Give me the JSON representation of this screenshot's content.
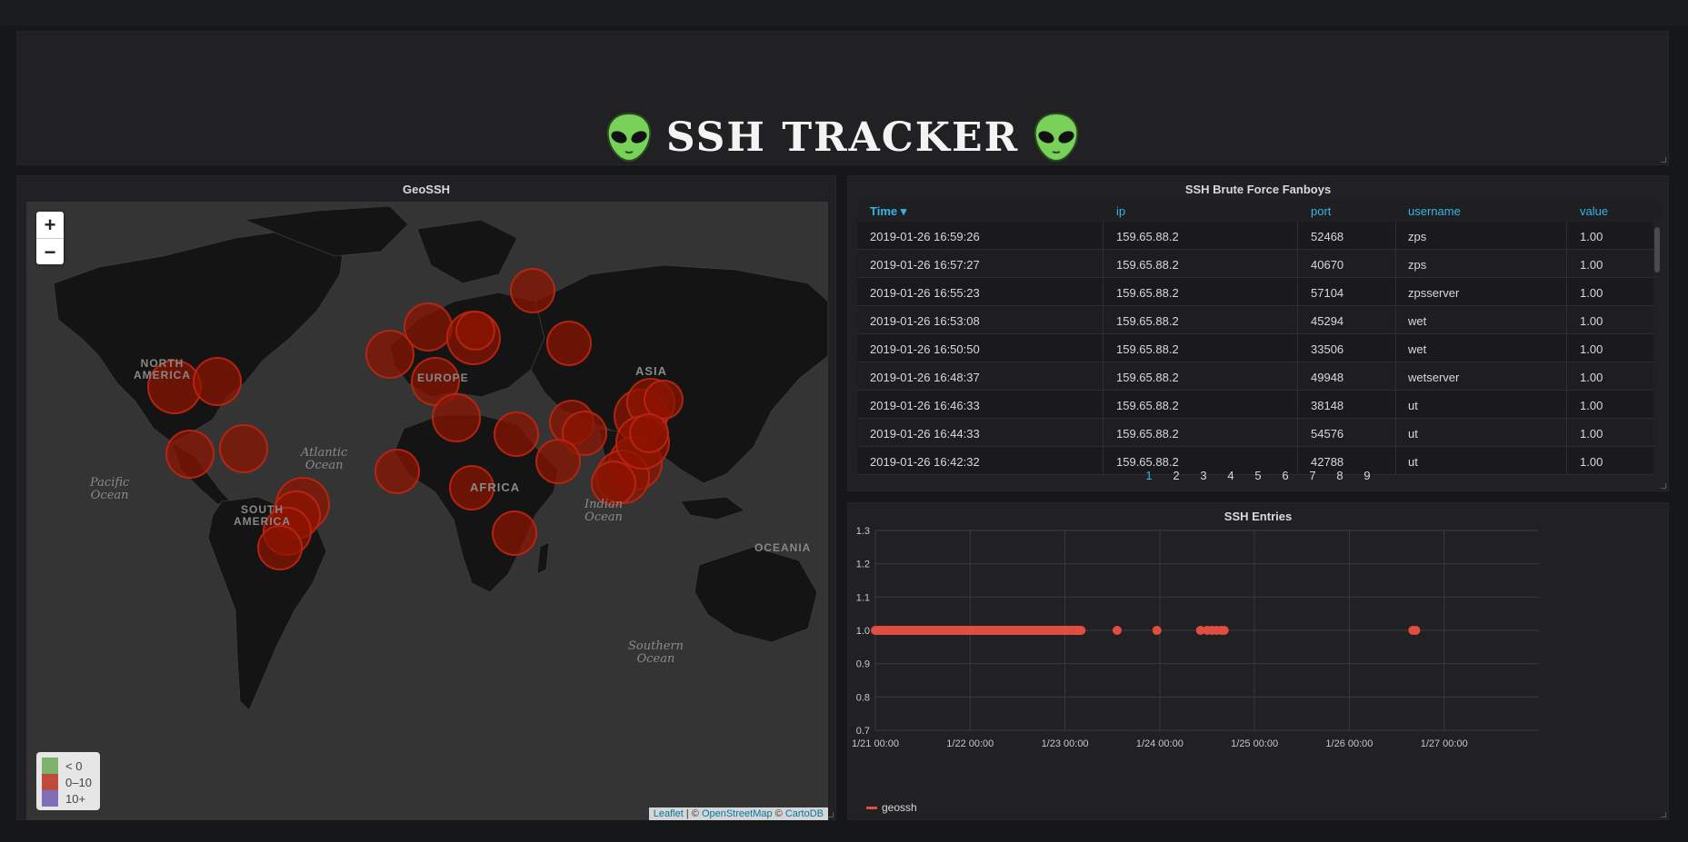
{
  "header": {
    "title": "SSH TRACKER",
    "icon_left": "alien-emoji-icon",
    "icon_right": "alien-emoji-icon"
  },
  "map_panel": {
    "title": "GeoSSH",
    "zoom_in": "+",
    "zoom_out": "−",
    "labels": {
      "north_america": "NORTH\nAMERICA",
      "south_america": "SOUTH\nAMERICA",
      "europe": "EUROPE",
      "asia": "ASIA",
      "africa": "AFRICA",
      "oceania": "OCEANIA",
      "atlantic": "Atlantic\nOcean",
      "pacific": "Pacific\nOcean",
      "indian": "Indian\nOcean",
      "southern": "Southern\nOcean"
    },
    "legend": [
      {
        "label": "< 0",
        "color": "#7eb26d"
      },
      {
        "label": "0–10",
        "color": "#bf4b3c"
      },
      {
        "label": "10+",
        "color": "#806eb7"
      }
    ],
    "attribution": {
      "leaflet": "Leaflet",
      "sep1": " | © ",
      "osm": "OpenStreetMap",
      "sep2": " © ",
      "carto": "CartoDB"
    },
    "marker_color": "#8e1400"
  },
  "table_panel": {
    "title": "SSH Brute Force Fanboys",
    "columns": [
      "Time ▾",
      "ip",
      "port",
      "username",
      "value"
    ],
    "rows": [
      [
        "2019-01-26 16:59:26",
        "159.65.88.2",
        "52468",
        "zps",
        "1.00"
      ],
      [
        "2019-01-26 16:57:27",
        "159.65.88.2",
        "40670",
        "zps",
        "1.00"
      ],
      [
        "2019-01-26 16:55:23",
        "159.65.88.2",
        "57104",
        "zpsserver",
        "1.00"
      ],
      [
        "2019-01-26 16:53:08",
        "159.65.88.2",
        "45294",
        "wet",
        "1.00"
      ],
      [
        "2019-01-26 16:50:50",
        "159.65.88.2",
        "33506",
        "wet",
        "1.00"
      ],
      [
        "2019-01-26 16:48:37",
        "159.65.88.2",
        "49948",
        "wetserver",
        "1.00"
      ],
      [
        "2019-01-26 16:46:33",
        "159.65.88.2",
        "38148",
        "ut",
        "1.00"
      ],
      [
        "2019-01-26 16:44:33",
        "159.65.88.2",
        "54576",
        "ut",
        "1.00"
      ],
      [
        "2019-01-26 16:42:32",
        "159.65.88.2",
        "42788",
        "ut",
        "1.00"
      ]
    ],
    "pages": [
      "1",
      "2",
      "3",
      "4",
      "5",
      "6",
      "7",
      "8",
      "9"
    ],
    "active_page": "1"
  },
  "graph_panel": {
    "title": "SSH Entries",
    "legend": "geossh",
    "series_color": "#e24d42"
  },
  "chart_data": {
    "type": "scatter",
    "title": "SSH Entries",
    "xlabel": "",
    "ylabel": "",
    "ylim": [
      0.7,
      1.3
    ],
    "yticks": [
      "1.3",
      "1.2",
      "1.1",
      "1.0",
      "0.9",
      "0.8",
      "0.7"
    ],
    "xticks": [
      "1/21 00:00",
      "1/22 00:00",
      "1/23 00:00",
      "1/24 00:00",
      "1/25 00:00",
      "1/26 00:00",
      "1/27 00:00"
    ],
    "xlim_days": [
      21.0,
      28.0
    ],
    "grid": true,
    "legend_position": "bottom-left",
    "series": [
      {
        "name": "geossh",
        "segments_days": [
          [
            21.0,
            23.17
          ]
        ],
        "points_days": [
          23.55,
          23.97,
          24.43,
          24.5,
          24.55,
          24.6,
          24.65,
          24.68,
          26.67,
          26.7
        ],
        "y": 1.0
      }
    ]
  }
}
